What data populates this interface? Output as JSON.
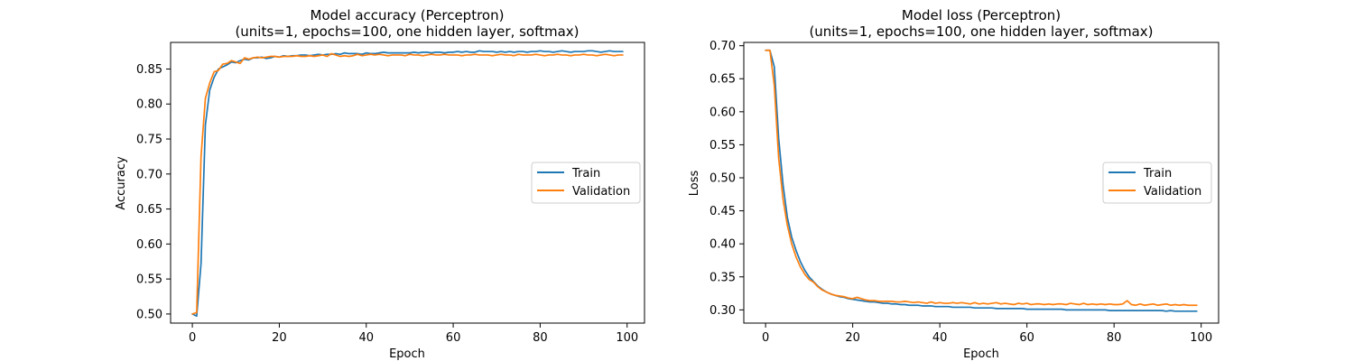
{
  "colors": {
    "train": "#1f77b4",
    "validation": "#ff7f0e"
  },
  "chart_data": [
    {
      "type": "line",
      "title": "Model accuracy (Perceptron)",
      "subtitle": "(units=1, epochs=100, one hidden layer, softmax)",
      "xlabel": "Epoch",
      "ylabel": "Accuracy",
      "xlim": [
        -5,
        104
      ],
      "ylim": [
        0.487,
        0.888
      ],
      "xticks": [
        0,
        20,
        40,
        60,
        80,
        100
      ],
      "yticks": [
        0.5,
        0.55,
        0.6,
        0.65,
        0.7,
        0.75,
        0.8,
        0.85
      ],
      "ytick_decimals": 2,
      "grid": false,
      "legend": "center right",
      "series": [
        {
          "name": "Train",
          "values": [
            0.5,
            0.497,
            0.572,
            0.77,
            0.82,
            0.838,
            0.85,
            0.853,
            0.856,
            0.86,
            0.859,
            0.862,
            0.864,
            0.863,
            0.866,
            0.866,
            0.867,
            0.865,
            0.866,
            0.868,
            0.867,
            0.869,
            0.868,
            0.869,
            0.869,
            0.87,
            0.87,
            0.869,
            0.87,
            0.871,
            0.87,
            0.871,
            0.871,
            0.872,
            0.871,
            0.873,
            0.872,
            0.872,
            0.872,
            0.871,
            0.873,
            0.872,
            0.872,
            0.873,
            0.874,
            0.873,
            0.873,
            0.873,
            0.873,
            0.873,
            0.873,
            0.874,
            0.873,
            0.874,
            0.874,
            0.873,
            0.874,
            0.874,
            0.873,
            0.874,
            0.874,
            0.875,
            0.874,
            0.875,
            0.874,
            0.874,
            0.876,
            0.875,
            0.875,
            0.875,
            0.874,
            0.875,
            0.874,
            0.875,
            0.874,
            0.875,
            0.875,
            0.874,
            0.875,
            0.875,
            0.876,
            0.875,
            0.875,
            0.874,
            0.875,
            0.876,
            0.875,
            0.874,
            0.875,
            0.875,
            0.875,
            0.876,
            0.876,
            0.875,
            0.874,
            0.875,
            0.876,
            0.875,
            0.875,
            0.875
          ]
        },
        {
          "name": "Validation",
          "values": [
            0.5,
            0.502,
            0.725,
            0.808,
            0.83,
            0.846,
            0.848,
            0.857,
            0.858,
            0.862,
            0.86,
            0.858,
            0.866,
            0.864,
            0.866,
            0.867,
            0.866,
            0.867,
            0.868,
            0.868,
            0.867,
            0.868,
            0.868,
            0.868,
            0.869,
            0.868,
            0.868,
            0.869,
            0.868,
            0.869,
            0.87,
            0.868,
            0.872,
            0.87,
            0.868,
            0.869,
            0.868,
            0.869,
            0.871,
            0.869,
            0.87,
            0.871,
            0.87,
            0.871,
            0.87,
            0.869,
            0.87,
            0.87,
            0.87,
            0.869,
            0.871,
            0.87,
            0.87,
            0.869,
            0.87,
            0.871,
            0.87,
            0.87,
            0.871,
            0.87,
            0.87,
            0.87,
            0.869,
            0.87,
            0.87,
            0.871,
            0.87,
            0.87,
            0.87,
            0.869,
            0.87,
            0.871,
            0.87,
            0.87,
            0.869,
            0.871,
            0.87,
            0.87,
            0.87,
            0.871,
            0.87,
            0.869,
            0.87,
            0.87,
            0.871,
            0.87,
            0.87,
            0.869,
            0.87,
            0.87,
            0.871,
            0.87,
            0.87,
            0.869,
            0.87,
            0.871,
            0.87,
            0.869,
            0.87,
            0.87
          ]
        }
      ]
    },
    {
      "type": "line",
      "title": "Model loss (Perceptron)",
      "subtitle": "(units=1, epochs=100, one hidden layer, softmax)",
      "xlabel": "Epoch",
      "ylabel": "Loss",
      "xlim": [
        -5,
        104
      ],
      "ylim": [
        0.28,
        0.705
      ],
      "xticks": [
        0,
        20,
        40,
        60,
        80,
        100
      ],
      "yticks": [
        0.3,
        0.35,
        0.4,
        0.45,
        0.5,
        0.55,
        0.6,
        0.65,
        0.7
      ],
      "ytick_decimals": 2,
      "grid": false,
      "legend": "center right",
      "series": [
        {
          "name": "Train",
          "values": [
            0.693,
            0.693,
            0.668,
            0.56,
            0.49,
            0.44,
            0.41,
            0.39,
            0.373,
            0.36,
            0.35,
            0.343,
            0.336,
            0.331,
            0.327,
            0.324,
            0.322,
            0.32,
            0.319,
            0.317,
            0.316,
            0.315,
            0.314,
            0.313,
            0.312,
            0.312,
            0.311,
            0.31,
            0.31,
            0.309,
            0.309,
            0.308,
            0.308,
            0.307,
            0.307,
            0.307,
            0.306,
            0.306,
            0.306,
            0.305,
            0.305,
            0.305,
            0.305,
            0.304,
            0.304,
            0.304,
            0.304,
            0.304,
            0.303,
            0.303,
            0.303,
            0.303,
            0.303,
            0.302,
            0.302,
            0.302,
            0.302,
            0.302,
            0.302,
            0.302,
            0.301,
            0.301,
            0.301,
            0.301,
            0.301,
            0.301,
            0.301,
            0.301,
            0.301,
            0.3,
            0.3,
            0.3,
            0.3,
            0.3,
            0.3,
            0.3,
            0.3,
            0.3,
            0.3,
            0.299,
            0.299,
            0.299,
            0.299,
            0.299,
            0.299,
            0.299,
            0.299,
            0.299,
            0.299,
            0.299,
            0.299,
            0.299,
            0.298,
            0.299,
            0.298,
            0.298,
            0.298,
            0.298,
            0.298,
            0.298
          ]
        },
        {
          "name": "Validation",
          "values": [
            0.693,
            0.693,
            0.64,
            0.53,
            0.468,
            0.428,
            0.4,
            0.38,
            0.365,
            0.354,
            0.346,
            0.342,
            0.335,
            0.33,
            0.327,
            0.324,
            0.322,
            0.321,
            0.32,
            0.318,
            0.317,
            0.319,
            0.317,
            0.315,
            0.314,
            0.314,
            0.313,
            0.313,
            0.313,
            0.313,
            0.312,
            0.312,
            0.313,
            0.312,
            0.311,
            0.312,
            0.311,
            0.31,
            0.312,
            0.31,
            0.311,
            0.31,
            0.31,
            0.311,
            0.31,
            0.311,
            0.31,
            0.309,
            0.311,
            0.309,
            0.31,
            0.309,
            0.31,
            0.311,
            0.309,
            0.31,
            0.309,
            0.308,
            0.31,
            0.309,
            0.31,
            0.308,
            0.309,
            0.309,
            0.308,
            0.309,
            0.308,
            0.309,
            0.309,
            0.308,
            0.31,
            0.309,
            0.308,
            0.31,
            0.308,
            0.309,
            0.308,
            0.309,
            0.308,
            0.309,
            0.308,
            0.308,
            0.309,
            0.314,
            0.308,
            0.307,
            0.309,
            0.307,
            0.308,
            0.309,
            0.307,
            0.308,
            0.309,
            0.307,
            0.308,
            0.307,
            0.308,
            0.307,
            0.307,
            0.307
          ]
        }
      ]
    }
  ]
}
